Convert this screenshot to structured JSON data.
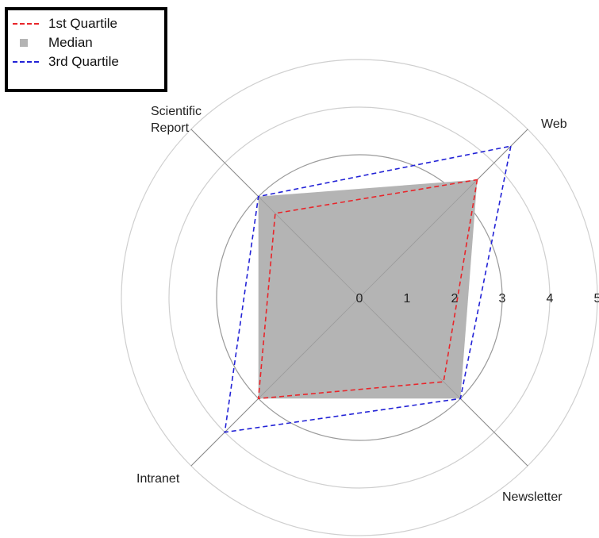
{
  "chart_data": {
    "type": "radar",
    "axes": [
      "Web",
      "Newsletter",
      "Intranet",
      "Scientific Report"
    ],
    "r_ticks": [
      "0",
      "1",
      "2",
      "3",
      "4",
      "5"
    ],
    "r_range": [
      0,
      5
    ],
    "grid": true,
    "legend_position": "top-left",
    "series": [
      {
        "name": "1st Quartile",
        "style": "dashed-line",
        "color": "#e8262b",
        "values": [
          3.5,
          2.5,
          3.0,
          2.5
        ]
      },
      {
        "name": "Median",
        "style": "filled-area",
        "color": "#b4b4b4",
        "values": [
          3.5,
          3.0,
          3.0,
          3.0
        ]
      },
      {
        "name": "3rd Quartile",
        "style": "dashed-line",
        "color": "#2222d6",
        "values": [
          4.5,
          3.0,
          4.0,
          3.0
        ]
      }
    ]
  }
}
